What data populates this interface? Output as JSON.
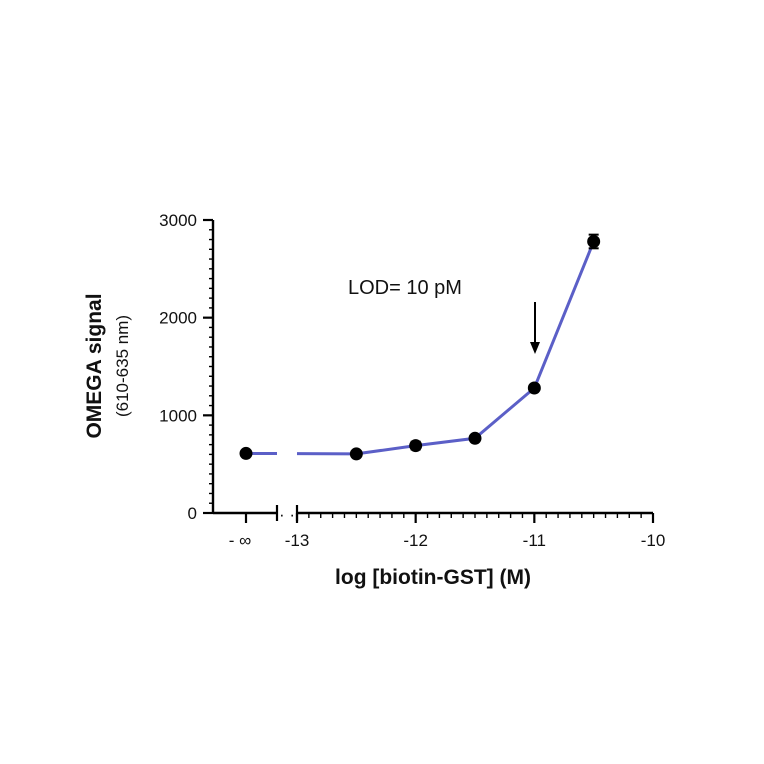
{
  "chart_data": {
    "type": "line",
    "title": "",
    "xlabel": "log [biotin-GST] (M)",
    "ylabel": "OMEGA signal",
    "ylabel_sub": "(610-635 nm)",
    "xlim": [
      -13.3,
      -10
    ],
    "ylim": [
      0,
      3000
    ],
    "y_ticks": [
      0,
      1000,
      2000,
      3000
    ],
    "x_ticks": [
      -13,
      -12,
      -11,
      -10
    ],
    "x_break_label": "- ∞",
    "x_break_dots": "· ·",
    "annotation": "LOD= 10 pM",
    "annotation_arrow_x": -11,
    "series": [
      {
        "color": "#5b5fc7",
        "points": [
          {
            "x": "-inf",
            "y": 610,
            "err": 0
          },
          {
            "x": -12.5,
            "y": 605,
            "err": 0
          },
          {
            "x": -12,
            "y": 690,
            "err": 40
          },
          {
            "x": -11.5,
            "y": 765,
            "err": 20
          },
          {
            "x": -11,
            "y": 1280,
            "err": 30
          },
          {
            "x": -10.5,
            "y": 2780,
            "err": 70
          }
        ]
      }
    ]
  }
}
